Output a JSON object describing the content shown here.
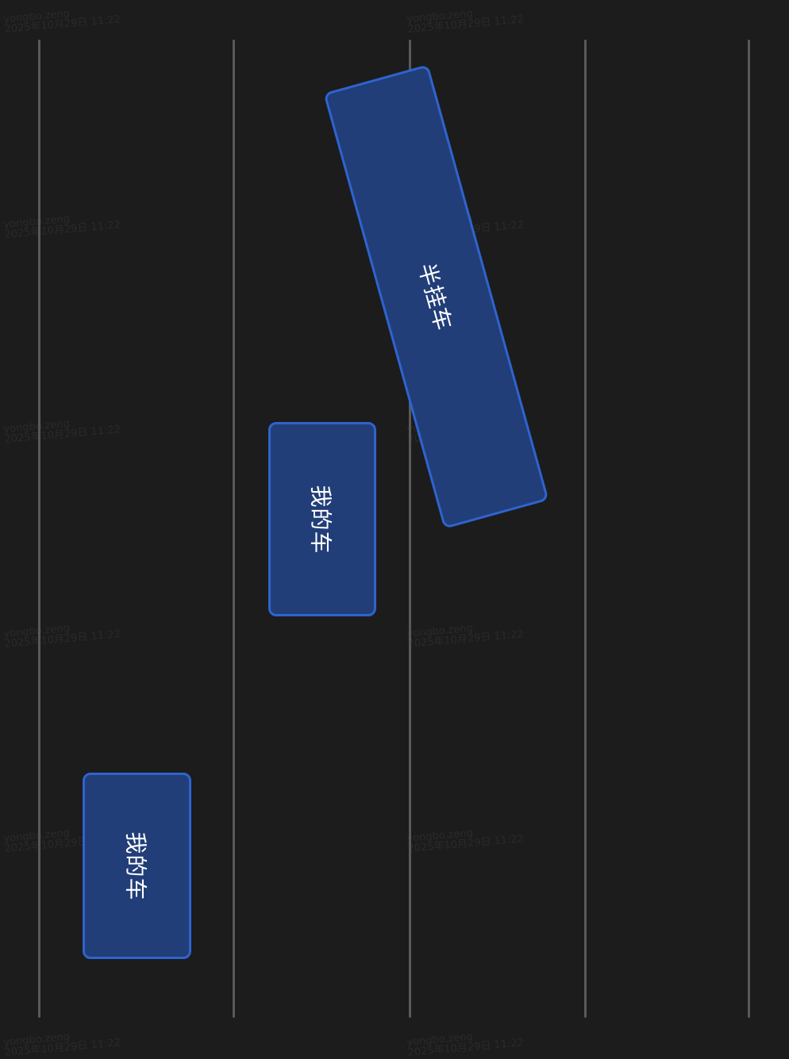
{
  "colors": {
    "background": "#1c1c1c",
    "lane_line": "#595959",
    "vehicle_fill": "#213e78",
    "vehicle_border": "#2f63cf",
    "label": "#ffffff"
  },
  "vehicles": [
    {
      "label": "半挂车"
    },
    {
      "label": "我的车"
    },
    {
      "label": "我的车"
    }
  ],
  "watermark": {
    "user": "yongbo.zeng",
    "timestamp": "2025年10月29日 11:22"
  }
}
